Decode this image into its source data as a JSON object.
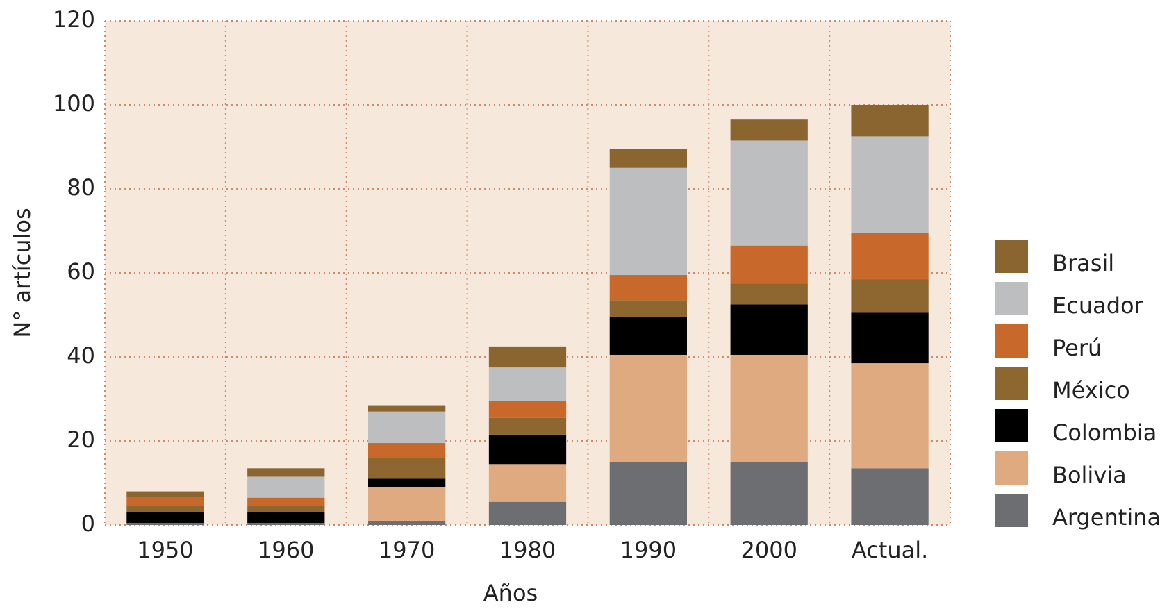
{
  "chart_data": {
    "type": "stacked_bar",
    "xlabel": "Años",
    "ylabel": "N° artículos",
    "categories": [
      "1950",
      "1960",
      "1970",
      "1980",
      "1990",
      "2000",
      "Actual."
    ],
    "series": [
      {
        "name": "Argentina",
        "color": "#6d6e71",
        "values": [
          0.5,
          0.5,
          1,
          5.5,
          15,
          15,
          13.5
        ]
      },
      {
        "name": "Bolivia",
        "color": "#e0aa80",
        "values": [
          0,
          0,
          8,
          9,
          25.5,
          25.5,
          25
        ]
      },
      {
        "name": "Colombia",
        "color": "#000000",
        "values": [
          2.5,
          2.5,
          2,
          7,
          9,
          12,
          12
        ]
      },
      {
        "name": "México",
        "color": "#8d6630",
        "values": [
          1.5,
          1.5,
          5,
          4,
          4,
          5,
          8
        ]
      },
      {
        "name": "Perú",
        "color": "#c8692b",
        "values": [
          2,
          2,
          3.5,
          4,
          6,
          9,
          11
        ]
      },
      {
        "name": "Ecuador",
        "color": "#bcbec0",
        "values": [
          0,
          5,
          7.5,
          8,
          25.5,
          25,
          23
        ]
      },
      {
        "name": "Brasil",
        "color": "#8b6530",
        "values": [
          1.5,
          2,
          1.5,
          5,
          4.5,
          5,
          7.5
        ]
      }
    ],
    "ylim": [
      0,
      120
    ],
    "yticks": [
      0,
      20,
      40,
      60,
      80,
      100,
      120
    ],
    "grid": true,
    "background": "#f6e8da",
    "legend": "right"
  }
}
